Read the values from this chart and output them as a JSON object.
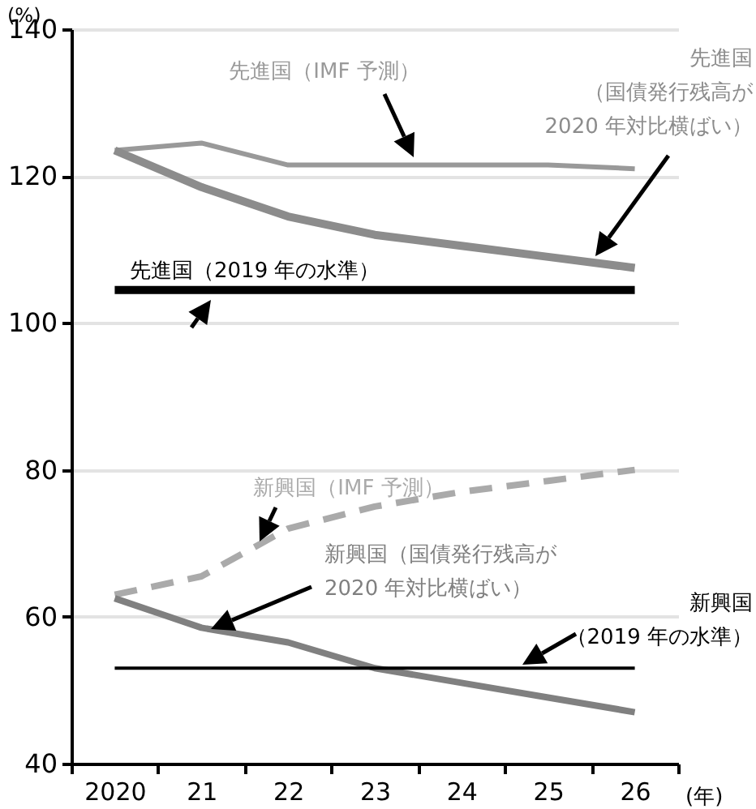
{
  "chart_data": {
    "type": "line",
    "xlabel": "(年)",
    "ylabel": "(%)",
    "categories": [
      "2020",
      "21",
      "22",
      "23",
      "24",
      "25",
      "26"
    ],
    "ylim": [
      40,
      140
    ],
    "yticks": [
      40,
      60,
      80,
      100,
      120,
      140
    ],
    "grid": "y",
    "legend": false,
    "series": [
      {
        "name": "先進国（IMF 予測）",
        "color": "#999999",
        "values": [
          123.5,
          124.5,
          121.5,
          121.5,
          121.5,
          121.5,
          121
        ]
      },
      {
        "name": "先進国（国債発行残高が2020 年対比横ばい）",
        "color": "#8c8c8c",
        "values": [
          123.5,
          118.5,
          114.5,
          112,
          110.5,
          109,
          107.5
        ]
      },
      {
        "name": "先進国（2019 年の水準）",
        "color": "#000000",
        "values": [
          104.5,
          104.5,
          104.5,
          104.5,
          104.5,
          104.5,
          104.5
        ]
      },
      {
        "name": "新興国（IMF 予測）",
        "color": "#aaaaaa",
        "line_style": "dashed",
        "values": [
          63,
          65.5,
          72,
          75,
          77,
          78.5,
          80
        ]
      },
      {
        "name": "新興国（国債発行残高が2020 年対比横ばい）",
        "color": "#808080",
        "values": [
          62.5,
          58.5,
          56.5,
          53,
          51,
          49,
          47
        ]
      },
      {
        "name": "新興国（2019 年の水準）",
        "color": "#000000",
        "values": [
          53,
          53,
          53,
          53,
          53,
          53,
          53
        ]
      }
    ]
  }
}
